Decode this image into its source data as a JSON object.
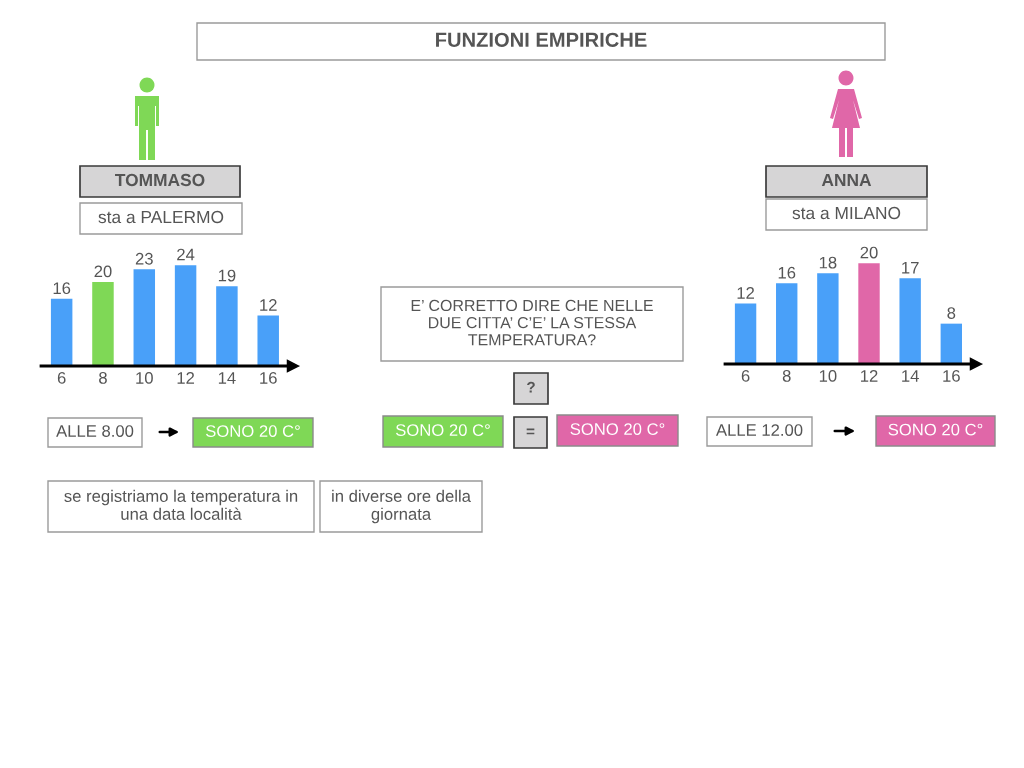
{
  "chart_data": [
    {
      "type": "other",
      "title": "FUNZIONI EMPIRICHE"
    },
    {
      "type": "bar",
      "title": "TOMMASO",
      "subtitle": "sta a PALERMO",
      "categories": [
        "6",
        "8",
        "10",
        "12",
        "14",
        "16"
      ],
      "values": [
        16,
        20,
        23,
        24,
        19,
        12
      ],
      "colors": [
        "#49a0f9",
        "#7fd856",
        "#49a0f9",
        "#49a0f9",
        "#49a0f9",
        "#49a0f9"
      ],
      "data_labels": true,
      "annotations": [
        "ALLE 8.00",
        "SONO 20 C°",
        "se registriamo la temperatura in\nuna data località",
        "in diverse ore della\ngiornata"
      ]
    },
    {
      "type": "other",
      "annotations": [
        "E’ CORRETTO DIRE CHE NELLE\nDUE CITTA’ C’E’ LA STESSA\nTEMPERATURA?",
        "?",
        "SONO 20 C°",
        "=",
        "SONO 20 C°"
      ]
    },
    {
      "type": "bar",
      "title": "ANNA",
      "subtitle": "sta a MILANO",
      "categories": [
        "6",
        "8",
        "10",
        "12",
        "14",
        "16"
      ],
      "values": [
        12,
        16,
        18,
        20,
        17,
        8
      ],
      "colors": [
        "#49a0f9",
        "#49a0f9",
        "#49a0f9",
        "#e067a8",
        "#49a0f9",
        "#49a0f9"
      ],
      "data_labels": true,
      "annotations": [
        "ALLE 12.00",
        "SONO 20 C°"
      ]
    }
  ]
}
